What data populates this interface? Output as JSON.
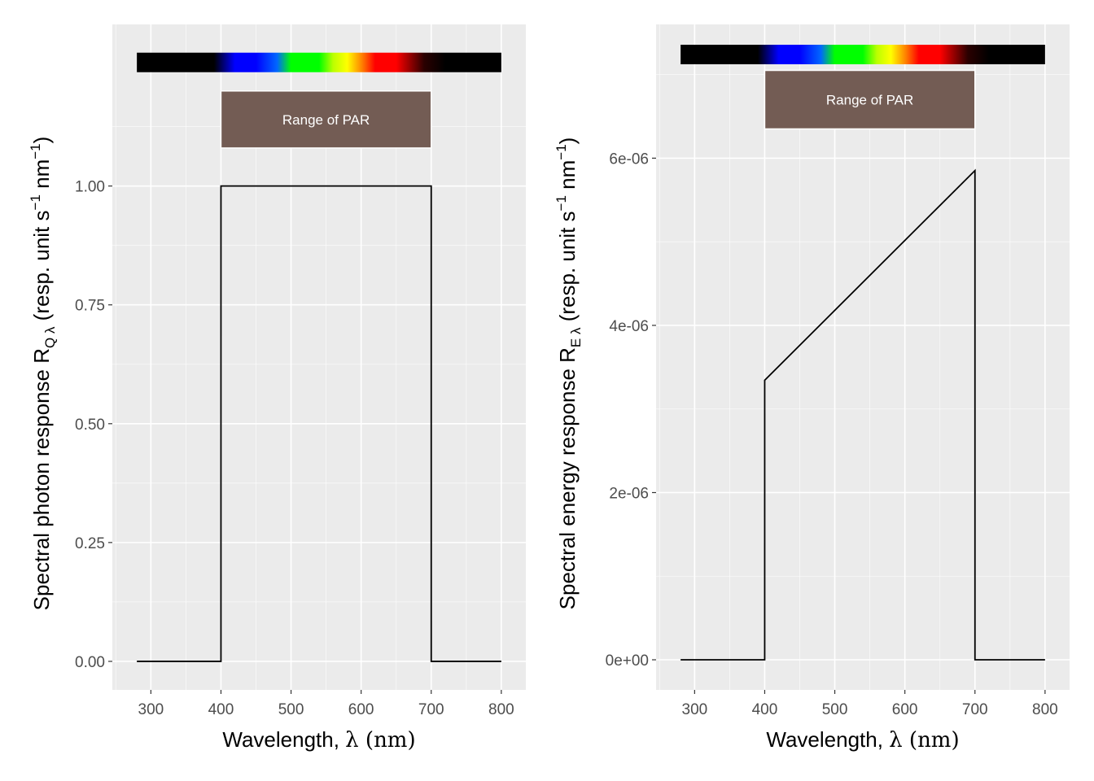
{
  "chart_data": [
    {
      "type": "line",
      "id": "photon",
      "x": [
        280,
        399.99,
        400,
        700,
        700.01,
        800
      ],
      "y": [
        0,
        0,
        1,
        1,
        0,
        0
      ],
      "xlim": [
        245,
        835
      ],
      "ylim": [
        -0.06,
        1.34
      ],
      "xticks": [
        300,
        400,
        500,
        600,
        700,
        800
      ],
      "xtick_labels": [
        "300",
        "400",
        "500",
        "600",
        "700",
        "800"
      ],
      "yticks": [
        0,
        0.25,
        0.5,
        0.75,
        1.0
      ],
      "ytick_labels": [
        "0.00",
        "0.25",
        "0.50",
        "0.75",
        "1.00"
      ],
      "xlabel": {
        "pre": "Wavelength, ",
        "greek": "λ",
        "post": " (nm)"
      },
      "ylabel": {
        "text": "Spectral  photon  response  R",
        "sub": "Q λ",
        "unit": "  (resp.  unit  s",
        "sup1": "−1",
        "nm": " nm",
        "sup2": "−1",
        "close": ")"
      },
      "spectrum_bar_y": 1.26,
      "par_box": {
        "x": [
          400,
          700
        ],
        "y": [
          1.08,
          1.2
        ],
        "label": "Range of PAR",
        "fill": "#735c54"
      },
      "grid": true
    },
    {
      "type": "line",
      "id": "energy",
      "x": [
        280,
        399.99,
        400,
        700,
        700.01,
        800
      ],
      "y": [
        0,
        0,
        3.344e-06,
        5.852e-06,
        0,
        0
      ],
      "xlim": [
        245,
        835
      ],
      "ylim": [
        -3.6e-07,
        7.6e-06
      ],
      "xticks": [
        300,
        400,
        500,
        600,
        700,
        800
      ],
      "xtick_labels": [
        "300",
        "400",
        "500",
        "600",
        "700",
        "800"
      ],
      "yticks": [
        0,
        2e-06,
        4e-06,
        6e-06
      ],
      "ytick_labels": [
        "0e+00",
        "2e-06",
        "4e-06",
        "6e-06"
      ],
      "xlabel": {
        "pre": "Wavelength, ",
        "greek": "λ",
        "post": " (nm)"
      },
      "ylabel": {
        "text": "Spectral  energy  response  R",
        "sub": "E λ",
        "unit": "  (resp.  unit  s",
        "sup1": "−1",
        "nm": " nm",
        "sup2": "−1",
        "close": ")"
      },
      "spectrum_bar_y": 7.24e-06,
      "par_box": {
        "x": [
          400,
          700
        ],
        "y": [
          6.35e-06,
          7.05e-06
        ],
        "label": "Range of PAR",
        "fill": "#735c54"
      },
      "grid": true
    }
  ],
  "colors": {
    "panel_bg": "#ebebeb",
    "grid_major": "#ffffff",
    "line": "#000000",
    "spectrum_stops": [
      {
        "nm": 280,
        "color": "#000000"
      },
      {
        "nm": 390,
        "color": "#000000"
      },
      {
        "nm": 420,
        "color": "#0000ff"
      },
      {
        "nm": 450,
        "color": "#0000ff"
      },
      {
        "nm": 480,
        "color": "#0066ff"
      },
      {
        "nm": 500,
        "color": "#00ff00"
      },
      {
        "nm": 540,
        "color": "#00ff00"
      },
      {
        "nm": 560,
        "color": "#bbff00"
      },
      {
        "nm": 580,
        "color": "#ffff00"
      },
      {
        "nm": 600,
        "color": "#ff8800"
      },
      {
        "nm": 620,
        "color": "#ff0000"
      },
      {
        "nm": 650,
        "color": "#ff0000"
      },
      {
        "nm": 690,
        "color": "#2a0000"
      },
      {
        "nm": 720,
        "color": "#000000"
      },
      {
        "nm": 800,
        "color": "#000000"
      }
    ]
  }
}
